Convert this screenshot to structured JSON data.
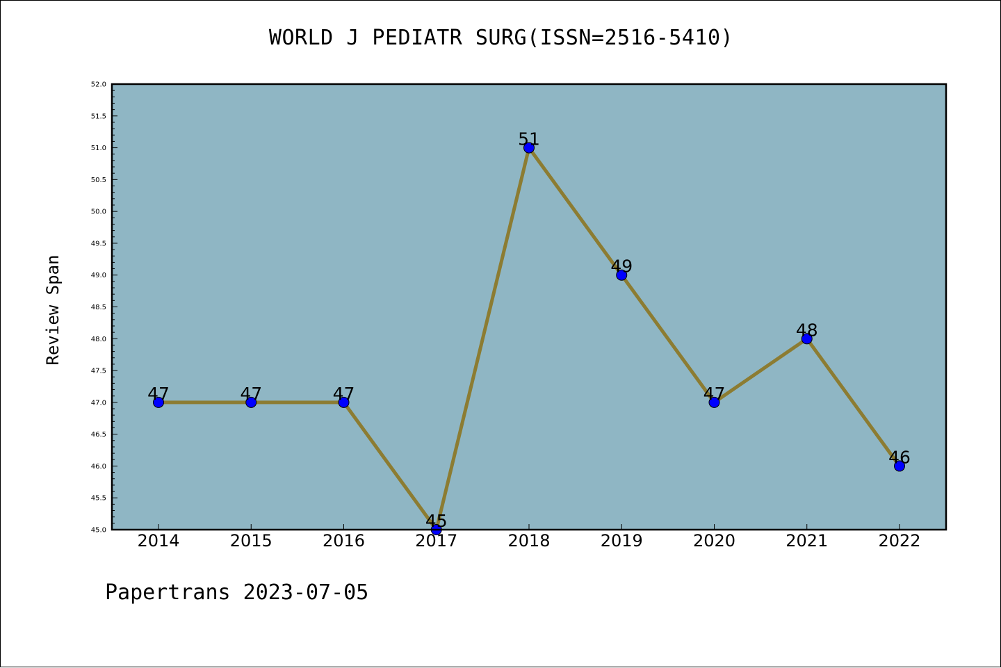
{
  "chart_data": {
    "type": "line",
    "title": "WORLD J PEDIATR SURG(ISSN=2516-5410)",
    "xlabel": "",
    "ylabel": "Review Span",
    "categories": [
      "2014",
      "2015",
      "2016",
      "2017",
      "2018",
      "2019",
      "2020",
      "2021",
      "2022"
    ],
    "series": [
      {
        "values": [
          47,
          47,
          47,
          45,
          51,
          49,
          47,
          48,
          46
        ],
        "line_color": "#8c7c32",
        "marker_color": "#0000ff"
      }
    ],
    "data_labels": [
      "47",
      "47",
      "47",
      "45",
      "51",
      "49",
      "47",
      "48",
      "46"
    ],
    "ylim": [
      45.0,
      52.0
    ],
    "yticks": [
      "45.0",
      "45.5",
      "46.0",
      "46.5",
      "47.0",
      "47.5",
      "48.0",
      "48.5",
      "49.0",
      "49.5",
      "50.0",
      "50.5",
      "51.0",
      "51.5",
      "52.0"
    ],
    "grid": false,
    "plot_background": "#8fb6c4"
  },
  "footer": {
    "text": "Papertrans 2023-07-05"
  }
}
